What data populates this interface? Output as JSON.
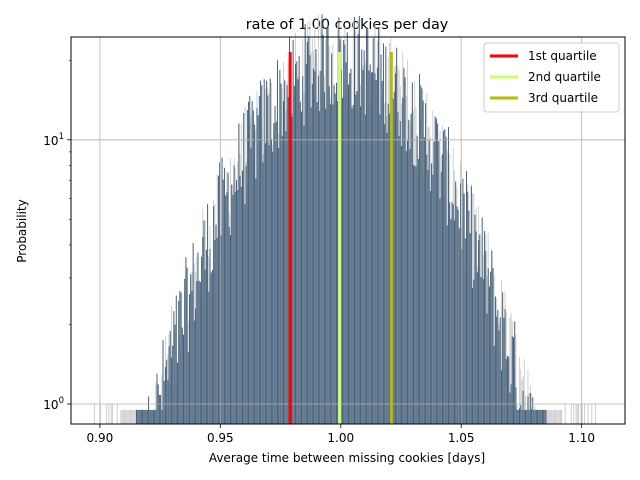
{
  "chart_data": {
    "type": "bar",
    "title": "rate of 1.00 cookies per day",
    "xlabel": "Average time between missing cookies [days]",
    "ylabel": "Probability",
    "xlim": [
      0.888,
      1.118
    ],
    "ylim": [
      0.84,
      24.5
    ],
    "yscale": "log",
    "grid": true,
    "x_ticks": [
      {
        "value": 0.9,
        "label": "0.90"
      },
      {
        "value": 0.95,
        "label": "0.95"
      },
      {
        "value": 1.0,
        "label": "1.00"
      },
      {
        "value": 1.05,
        "label": "1.05"
      },
      {
        "value": 1.1,
        "label": "1.10"
      }
    ],
    "y_ticks": [
      {
        "value": 1,
        "base": "10",
        "exp": "0"
      },
      {
        "value": 10,
        "base": "10",
        "exp": "1"
      }
    ],
    "distribution": {
      "mean": 1.0,
      "std": 0.031,
      "peak": 20,
      "min_x": 0.897,
      "max_x": 1.107
    },
    "quartiles": [
      {
        "name": "1st quartile",
        "x": 0.979,
        "height": 21.5,
        "color": "#ff0000"
      },
      {
        "name": "2nd quartile",
        "x": 0.9995,
        "height": 21.5,
        "color": "#ccff66"
      },
      {
        "name": "3rd quartile",
        "x": 1.021,
        "height": 21.5,
        "color": "#bbbb00"
      }
    ],
    "legend_position": "top-right",
    "colors": {
      "bars_front": "#44607a",
      "bars_back": "#cfcfcf",
      "grid": "#b0b0b0"
    }
  }
}
